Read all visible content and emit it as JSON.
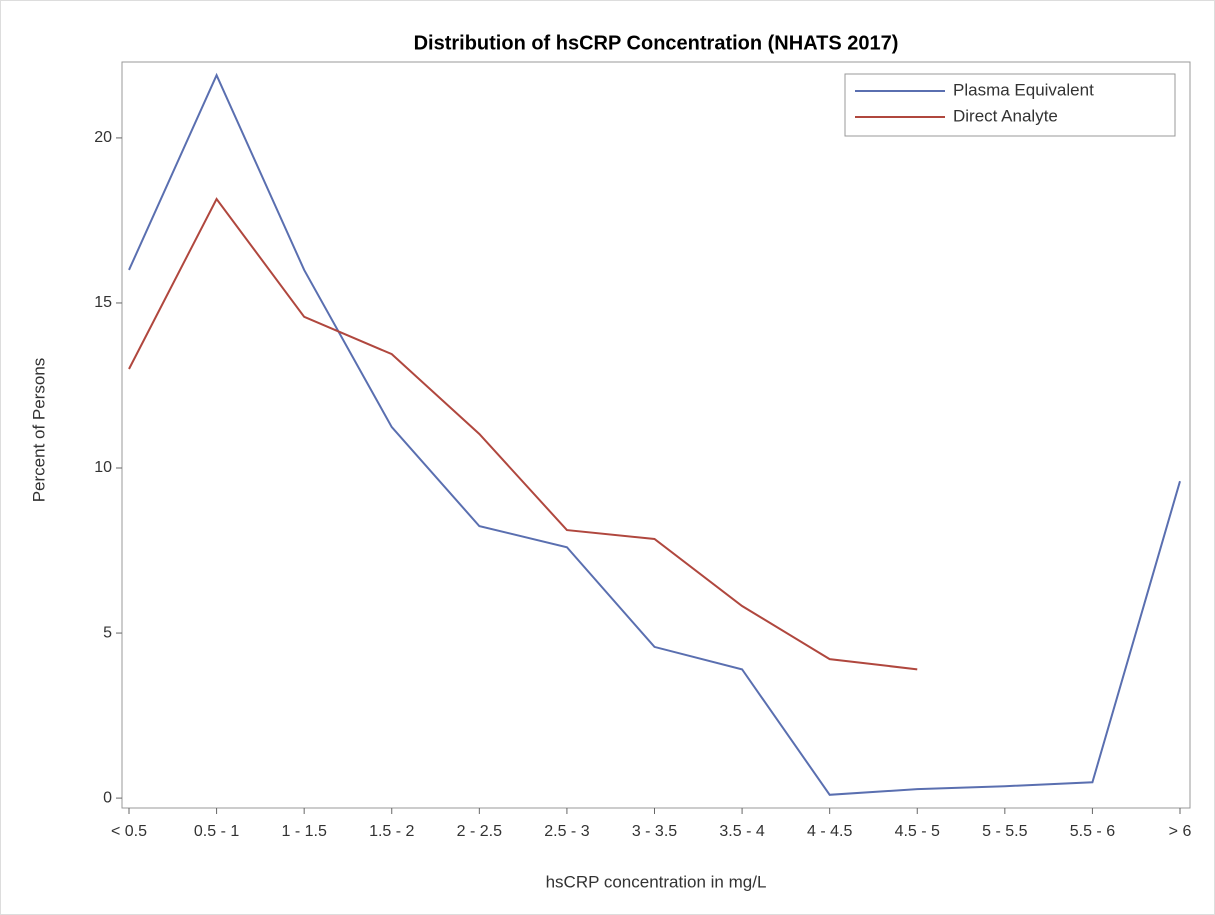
{
  "chart_data": {
    "type": "line",
    "title": "Distribution of hsCRP Concentration (NHATS 2017)",
    "x_label": "hsCRP concentration in mg/L",
    "y_label": "Percent of Persons",
    "categories": [
      "< 0.5",
      "0.5 - 1",
      "1 - 1.5",
      "1.5 - 2",
      "2 - 2.5",
      "2.5 - 3",
      "3 - 3.5",
      "3.5 - 4",
      "4 - 4.5",
      "4.5 - 5",
      "5 - 5.5",
      "5.5 - 6",
      "> 6"
    ],
    "series": [
      {
        "name": "Plasma Equivalent",
        "color": "#5a6fb0",
        "values": [
          16.0,
          21.9,
          16.0,
          11.24,
          8.24,
          7.6,
          4.58,
          3.9,
          0.1,
          0.27,
          0.36,
          0.48,
          9.6
        ]
      },
      {
        "name": "Direct Analyte",
        "color": "#b0473e",
        "values": [
          13.0,
          18.15,
          14.58,
          13.45,
          11.03,
          8.12,
          7.85,
          5.82,
          4.21,
          3.9,
          null,
          null,
          null
        ]
      }
    ],
    "ylim": [
      -0.3,
      22.3
    ],
    "yticks": [
      0,
      5,
      10,
      15,
      20
    ],
    "legend": "top-right"
  }
}
